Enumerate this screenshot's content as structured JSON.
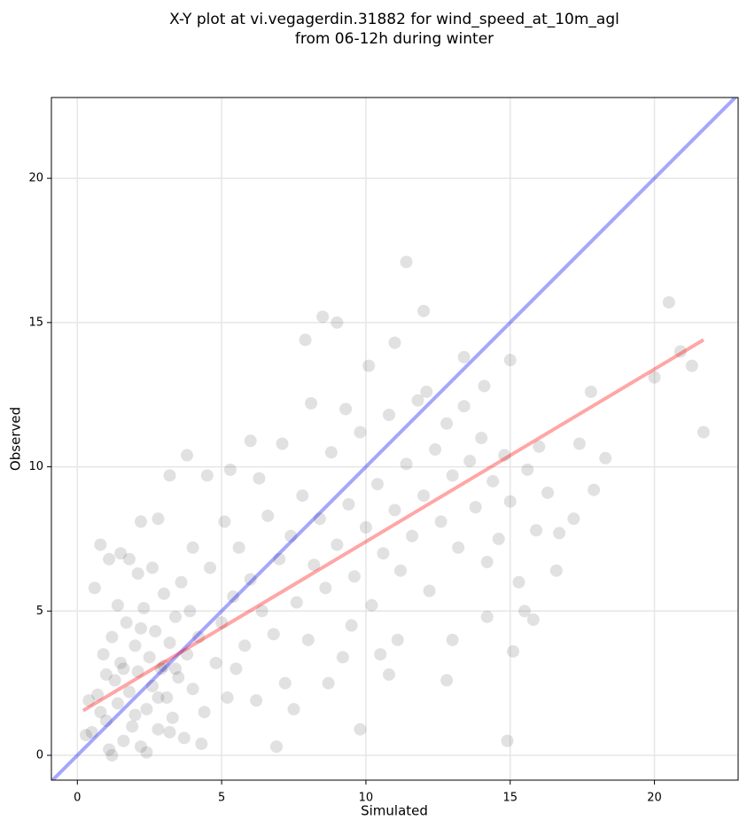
{
  "chart_data": {
    "type": "scatter",
    "title": [
      "X-Y plot at vi.vegagerdin.31882 for wind_speed_at_10m_agl",
      "from 06-12h during winter"
    ],
    "x_label": "Simulated",
    "y_label": "Observed",
    "xlim": [
      -0.9,
      22.9
    ],
    "ylim": [
      -0.86,
      22.8
    ],
    "xticks": [
      0,
      5,
      10,
      15,
      20
    ],
    "yticks": [
      0,
      5,
      10,
      15,
      20
    ],
    "grid": true,
    "series": [
      {
        "color": "#333333",
        "x": [
          0.5,
          0.7,
          0.9,
          1.0,
          1.1,
          1.2,
          1.3,
          1.4,
          1.5,
          1.6,
          1.7,
          1.8,
          1.9,
          2.0,
          2.1,
          2.2,
          2.3,
          2.4,
          2.5,
          2.6,
          2.7,
          2.8,
          2.9,
          3.0,
          3.1,
          3.2,
          3.3,
          3.4,
          3.5,
          3.6,
          3.7,
          3.8,
          3.9,
          4.0,
          4.2,
          4.4,
          4.6,
          4.8,
          5.0,
          5.2,
          5.4,
          5.6,
          5.8,
          6.0,
          6.2,
          6.4,
          6.6,
          6.8,
          7.0,
          7.2,
          7.4,
          7.6,
          7.8,
          8.0,
          8.2,
          8.4,
          8.6,
          8.8,
          9.0,
          9.2,
          9.4,
          9.6,
          9.8,
          10.0,
          10.2,
          10.4,
          10.6,
          10.8,
          11.0,
          11.2,
          11.4,
          11.6,
          11.8,
          12.0,
          12.2,
          12.4,
          12.6,
          12.8,
          13.0,
          13.2,
          13.4,
          13.6,
          13.8,
          14.0,
          14.2,
          14.4,
          14.6,
          14.8,
          15.0,
          15.3,
          15.6,
          15.9,
          16.3,
          16.6,
          17.2,
          17.4,
          0.3,
          0.6,
          0.8,
          1.0,
          1.2,
          1.4,
          1.6,
          1.8,
          2.0,
          2.2,
          2.4,
          2.6,
          2.8,
          3.0,
          3.2,
          3.4,
          4.0,
          4.3,
          5.1,
          5.5,
          6.3,
          6.9,
          7.1,
          7.5,
          8.1,
          8.7,
          9.3,
          9.5,
          10.1,
          10.5,
          11.0,
          11.1,
          12.1,
          13.4,
          14.1,
          15.0,
          15.8,
          16.0,
          0.4,
          1.1,
          1.5,
          2.1,
          4.5,
          6.0,
          7.9,
          9.0,
          8.5,
          11.4,
          12.0,
          20.5,
          21.7,
          9.8,
          14.9,
          20.9,
          21.3,
          20.0,
          17.8,
          18.3,
          17.9,
          3.8,
          3.2,
          5.3,
          15.1,
          12.8,
          10.8,
          0.8,
          2.2,
          2.8,
          16.7,
          15.5,
          13.0,
          14.2
        ],
        "y": [
          0.8,
          2.1,
          3.5,
          1.2,
          0.2,
          4.1,
          2.6,
          1.8,
          3.2,
          0.5,
          4.6,
          2.2,
          1.0,
          3.8,
          2.9,
          0.3,
          5.1,
          1.6,
          3.4,
          2.4,
          4.3,
          0.9,
          3.0,
          5.6,
          2.0,
          3.9,
          1.3,
          4.8,
          2.7,
          6.0,
          0.6,
          3.5,
          5.0,
          2.3,
          4.1,
          1.5,
          6.5,
          3.2,
          4.6,
          2.0,
          5.5,
          7.2,
          3.8,
          6.1,
          1.9,
          5.0,
          8.3,
          4.2,
          6.8,
          2.5,
          7.6,
          5.3,
          9.0,
          4.0,
          6.6,
          8.2,
          5.8,
          10.5,
          7.3,
          3.4,
          8.7,
          6.2,
          11.2,
          7.9,
          5.2,
          9.4,
          7.0,
          11.8,
          8.5,
          6.4,
          10.1,
          7.6,
          12.3,
          9.0,
          5.7,
          10.6,
          8.1,
          11.5,
          9.7,
          7.2,
          12.1,
          10.2,
          8.6,
          11.0,
          6.7,
          9.5,
          7.5,
          10.4,
          8.8,
          6.0,
          9.9,
          7.8,
          9.1,
          6.4,
          8.2,
          10.8,
          0.7,
          5.8,
          1.5,
          2.8,
          0.0,
          5.2,
          3.0,
          6.8,
          1.4,
          4.4,
          0.1,
          6.5,
          2.0,
          3.1,
          0.8,
          3.0,
          7.2,
          0.4,
          8.1,
          3.0,
          9.6,
          0.3,
          10.8,
          1.6,
          12.2,
          2.5,
          12.0,
          4.5,
          13.5,
          3.5,
          14.3,
          4.0,
          12.6,
          13.8,
          12.8,
          13.7,
          4.7,
          10.7,
          1.9,
          6.8,
          7.0,
          6.3,
          9.7,
          10.9,
          14.4,
          15.0,
          15.2,
          17.1,
          15.4,
          15.7,
          11.2,
          0.9,
          0.5,
          14.0,
          13.5,
          13.1,
          12.6,
          10.3,
          9.2,
          10.4,
          9.7,
          9.9,
          3.6,
          2.6,
          2.8,
          7.3,
          8.1,
          8.2,
          7.7,
          5.0,
          4.0,
          4.8
        ]
      }
    ],
    "lines": [
      {
        "color": "#0000ff",
        "x": [
          -0.9,
          22.9
        ],
        "y": [
          -0.9,
          22.9
        ]
      },
      {
        "color": "#ff0000",
        "x": [
          0.2,
          21.7
        ],
        "y": [
          1.55,
          14.4
        ]
      }
    ]
  }
}
